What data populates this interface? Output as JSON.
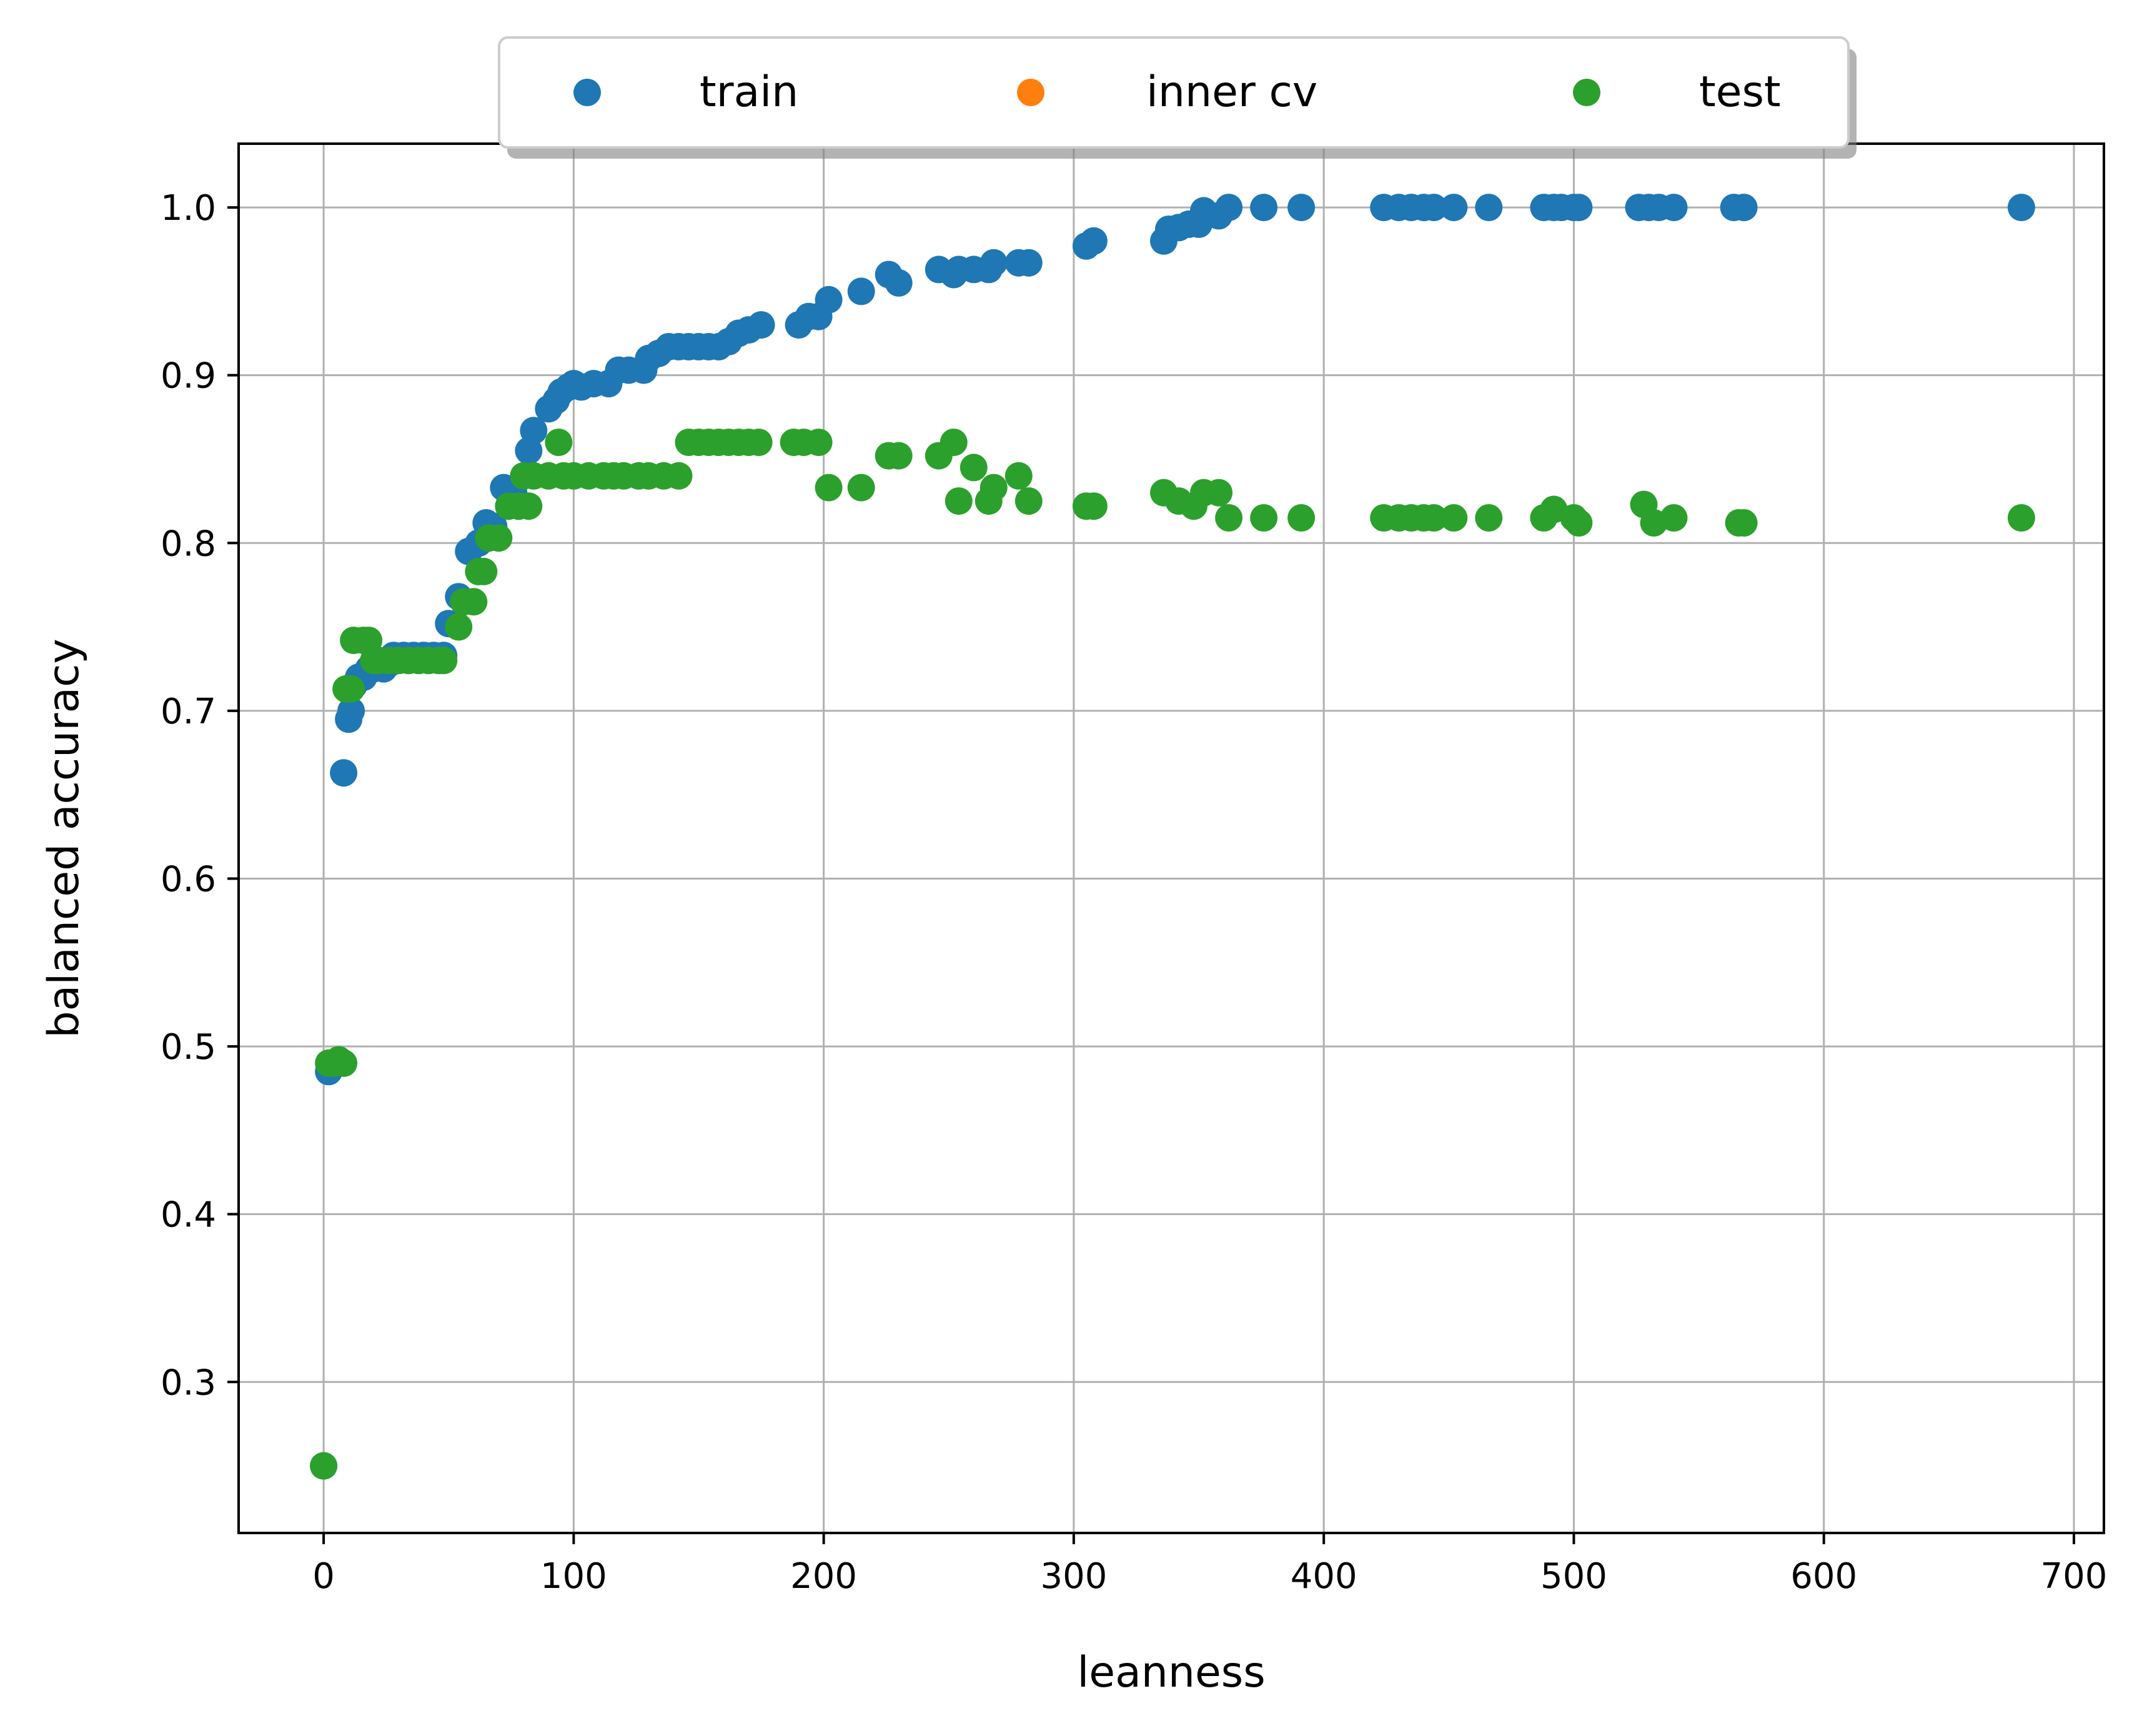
{
  "chart_data": {
    "type": "scatter",
    "title": "",
    "xlabel": "leanness",
    "ylabel": "balanced accuracy",
    "xlim": [
      -34,
      712
    ],
    "ylim": [
      0.21,
      1.038
    ],
    "grid": true,
    "legend_placement": "top-center",
    "x_ticks": [
      0,
      100,
      200,
      300,
      400,
      500,
      600,
      700
    ],
    "x_tick_labels": [
      "0",
      "100",
      "200",
      "300",
      "400",
      "500",
      "600",
      "700"
    ],
    "y_ticks": [
      0.3,
      0.4,
      0.5,
      0.6,
      0.7,
      0.8,
      0.9,
      1.0
    ],
    "y_tick_labels": [
      "0.3",
      "0.4",
      "0.5",
      "0.6",
      "0.7",
      "0.8",
      "0.9",
      "1.0"
    ],
    "series": [
      {
        "name": "train",
        "color": "#1f77b4",
        "points": [
          [
            0,
            0.25
          ],
          [
            2,
            0.485
          ],
          [
            4,
            0.49
          ],
          [
            6,
            0.49
          ],
          [
            8,
            0.663
          ],
          [
            10,
            0.695
          ],
          [
            11,
            0.7
          ],
          [
            12,
            0.715
          ],
          [
            14,
            0.72
          ],
          [
            16,
            0.72
          ],
          [
            18,
            0.725
          ],
          [
            20,
            0.725
          ],
          [
            22,
            0.728
          ],
          [
            24,
            0.725
          ],
          [
            26,
            0.728
          ],
          [
            28,
            0.733
          ],
          [
            32,
            0.733
          ],
          [
            36,
            0.733
          ],
          [
            40,
            0.733
          ],
          [
            44,
            0.733
          ],
          [
            48,
            0.733
          ],
          [
            50,
            0.752
          ],
          [
            54,
            0.768
          ],
          [
            58,
            0.795
          ],
          [
            62,
            0.8
          ],
          [
            65,
            0.812
          ],
          [
            68,
            0.81
          ],
          [
            72,
            0.833
          ],
          [
            76,
            0.83
          ],
          [
            78,
            0.822
          ],
          [
            82,
            0.855
          ],
          [
            84,
            0.867
          ],
          [
            90,
            0.88
          ],
          [
            93,
            0.885
          ],
          [
            95,
            0.89
          ],
          [
            98,
            0.893
          ],
          [
            100,
            0.895
          ],
          [
            103,
            0.893
          ],
          [
            108,
            0.895
          ],
          [
            114,
            0.895
          ],
          [
            118,
            0.903
          ],
          [
            122,
            0.903
          ],
          [
            128,
            0.903
          ],
          [
            130,
            0.91
          ],
          [
            134,
            0.913
          ],
          [
            138,
            0.917
          ],
          [
            142,
            0.917
          ],
          [
            146,
            0.917
          ],
          [
            150,
            0.917
          ],
          [
            154,
            0.917
          ],
          [
            158,
            0.917
          ],
          [
            162,
            0.92
          ],
          [
            166,
            0.925
          ],
          [
            170,
            0.927
          ],
          [
            175,
            0.93
          ],
          [
            190,
            0.93
          ],
          [
            194,
            0.935
          ],
          [
            198,
            0.935
          ],
          [
            202,
            0.945
          ],
          [
            215,
            0.95
          ],
          [
            226,
            0.96
          ],
          [
            230,
            0.955
          ],
          [
            246,
            0.963
          ],
          [
            252,
            0.96
          ],
          [
            254,
            0.963
          ],
          [
            260,
            0.963
          ],
          [
            266,
            0.963
          ],
          [
            268,
            0.967
          ],
          [
            278,
            0.967
          ],
          [
            282,
            0.967
          ],
          [
            305,
            0.977
          ],
          [
            308,
            0.98
          ],
          [
            336,
            0.98
          ],
          [
            338,
            0.987
          ],
          [
            342,
            0.988
          ],
          [
            346,
            0.99
          ],
          [
            350,
            0.99
          ],
          [
            352,
            0.998
          ],
          [
            358,
            0.995
          ],
          [
            362,
            1.0
          ],
          [
            376,
            1.0
          ],
          [
            391,
            1.0
          ],
          [
            424,
            1.0
          ],
          [
            430,
            1.0
          ],
          [
            435,
            1.0
          ],
          [
            440,
            1.0
          ],
          [
            444,
            1.0
          ],
          [
            452,
            1.0
          ],
          [
            466,
            1.0
          ],
          [
            488,
            1.0
          ],
          [
            492,
            1.0
          ],
          [
            495,
            1.0
          ],
          [
            500,
            1.0
          ],
          [
            502,
            1.0
          ],
          [
            526,
            1.0
          ],
          [
            530,
            1.0
          ],
          [
            534,
            1.0
          ],
          [
            540,
            1.0
          ],
          [
            564,
            1.0
          ],
          [
            568,
            1.0
          ],
          [
            679,
            1.0
          ]
        ]
      },
      {
        "name": "inner cv",
        "color": "#ff7f0e",
        "points": []
      },
      {
        "name": "test",
        "color": "#2ca02c",
        "points": [
          [
            0,
            0.25
          ],
          [
            2,
            0.49
          ],
          [
            4,
            0.49
          ],
          [
            6,
            0.492
          ],
          [
            8,
            0.49
          ],
          [
            9,
            0.713
          ],
          [
            11,
            0.713
          ],
          [
            12,
            0.742
          ],
          [
            16,
            0.742
          ],
          [
            18,
            0.742
          ],
          [
            20,
            0.73
          ],
          [
            22,
            0.73
          ],
          [
            26,
            0.73
          ],
          [
            30,
            0.73
          ],
          [
            34,
            0.73
          ],
          [
            38,
            0.73
          ],
          [
            42,
            0.73
          ],
          [
            46,
            0.73
          ],
          [
            48,
            0.73
          ],
          [
            54,
            0.75
          ],
          [
            56,
            0.765
          ],
          [
            60,
            0.765
          ],
          [
            62,
            0.783
          ],
          [
            64,
            0.783
          ],
          [
            66,
            0.803
          ],
          [
            70,
            0.803
          ],
          [
            74,
            0.822
          ],
          [
            78,
            0.822
          ],
          [
            82,
            0.822
          ],
          [
            80,
            0.84
          ],
          [
            84,
            0.84
          ],
          [
            90,
            0.84
          ],
          [
            94,
            0.86
          ],
          [
            96,
            0.84
          ],
          [
            100,
            0.84
          ],
          [
            106,
            0.84
          ],
          [
            112,
            0.84
          ],
          [
            116,
            0.84
          ],
          [
            120,
            0.84
          ],
          [
            126,
            0.84
          ],
          [
            130,
            0.84
          ],
          [
            136,
            0.84
          ],
          [
            142,
            0.84
          ],
          [
            146,
            0.86
          ],
          [
            150,
            0.86
          ],
          [
            154,
            0.86
          ],
          [
            158,
            0.86
          ],
          [
            162,
            0.86
          ],
          [
            166,
            0.86
          ],
          [
            170,
            0.86
          ],
          [
            174,
            0.86
          ],
          [
            188,
            0.86
          ],
          [
            192,
            0.86
          ],
          [
            198,
            0.86
          ],
          [
            202,
            0.833
          ],
          [
            215,
            0.833
          ],
          [
            226,
            0.852
          ],
          [
            230,
            0.852
          ],
          [
            246,
            0.852
          ],
          [
            252,
            0.86
          ],
          [
            254,
            0.825
          ],
          [
            260,
            0.845
          ],
          [
            266,
            0.825
          ],
          [
            268,
            0.833
          ],
          [
            278,
            0.84
          ],
          [
            282,
            0.825
          ],
          [
            305,
            0.822
          ],
          [
            308,
            0.822
          ],
          [
            336,
            0.83
          ],
          [
            342,
            0.825
          ],
          [
            348,
            0.822
          ],
          [
            352,
            0.83
          ],
          [
            358,
            0.83
          ],
          [
            362,
            0.815
          ],
          [
            376,
            0.815
          ],
          [
            391,
            0.815
          ],
          [
            424,
            0.815
          ],
          [
            430,
            0.815
          ],
          [
            435,
            0.815
          ],
          [
            440,
            0.815
          ],
          [
            444,
            0.815
          ],
          [
            452,
            0.815
          ],
          [
            466,
            0.815
          ],
          [
            488,
            0.815
          ],
          [
            492,
            0.82
          ],
          [
            500,
            0.815
          ],
          [
            502,
            0.812
          ],
          [
            528,
            0.823
          ],
          [
            532,
            0.812
          ],
          [
            540,
            0.815
          ],
          [
            566,
            0.812
          ],
          [
            568,
            0.812
          ],
          [
            679,
            0.815
          ]
        ]
      }
    ]
  }
}
